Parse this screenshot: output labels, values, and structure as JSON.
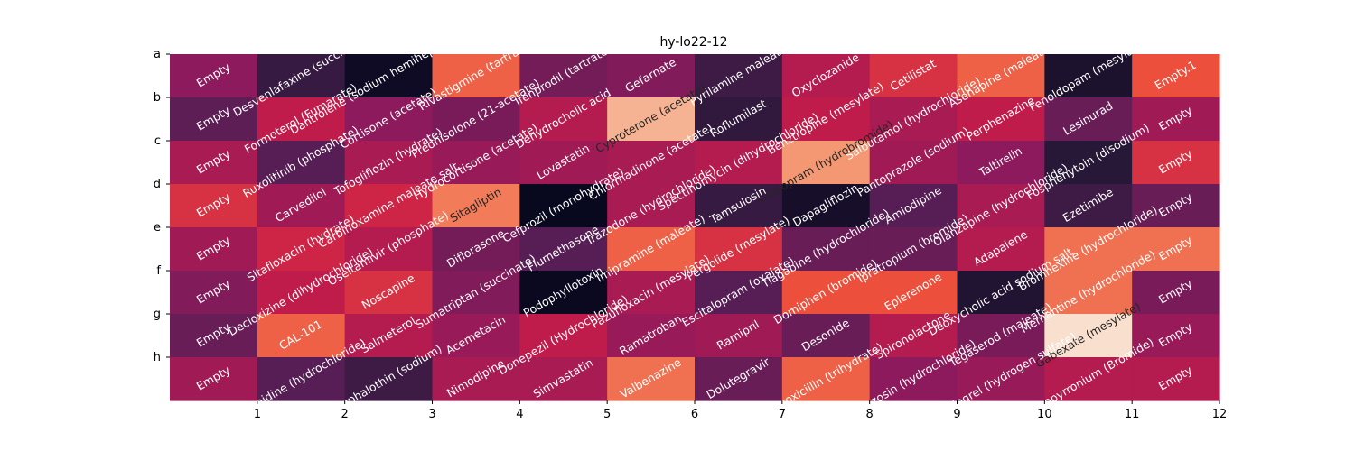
{
  "chart_data": {
    "type": "heatmap",
    "title": "hy-lo22-12",
    "xlabel": "",
    "ylabel": "",
    "x_ticks": [
      "1",
      "2",
      "3",
      "4",
      "5",
      "6",
      "7",
      "8",
      "9",
      "10",
      "11",
      "12"
    ],
    "y_ticks": [
      "a",
      "b",
      "c",
      "d",
      "e",
      "f",
      "g",
      "h"
    ],
    "colormap": "rocket",
    "colorbar": false,
    "rows": [
      [
        "Empty",
        "Desvenlafaxine (succinate)",
        "Dantrolene (sodium hemiheptahydrate)",
        "Rivastigmine (tartrate)",
        "Ifenprodil (tartrate)",
        "Gefarnate",
        "Pyrilamine maleate",
        "Oxyclozanide",
        "Cetilistat",
        "Asenapine (maleate)",
        "Fenoldopam (mesylate)",
        "Empty.1"
      ],
      [
        "Empty",
        "Formoterol (Fumarate)",
        "Cortisone (acetate)",
        "Prednisolone (21-acetate)",
        "Dehydrocholic acid",
        "Cyproterone (acetate)",
        "Roflumilast",
        "Benztropine (mesylate)",
        "Salbutamol (hydrochloride)",
        "Perphenazine",
        "Lesinurad",
        "Empty"
      ],
      [
        "Empty",
        "Ruxolitinib (phosphate)",
        "Tofogliflozin (hydrate)",
        "Hydrocortisone (acetate)",
        "Lovastatin",
        "Chlormadinone (acetate)",
        "Spectinomycin (dihydrochloride)",
        "Citalopram (hydrobromide)",
        "Pantoprazole (sodium)",
        "Taltirelin",
        "Fosphenytoin (disodium)",
        "Empty"
      ],
      [
        "Empty",
        "Carvedilol",
        "Carbinoxamine maleate salt",
        "Sitagliptin",
        "Cefprozil (monohydrate)",
        "Trazodone (hydrochloride)",
        "Tamsulosin",
        "Dapagliflozin",
        "Amlodipine",
        "Olanzapine (hydrochloride)",
        "Ezetimibe",
        "Empty"
      ],
      [
        "Empty",
        "Sitafloxacin (hydrate)",
        "Oseltamivir (phosphate)",
        "Diflorasone",
        "Flumethasone",
        "Imipramine (maleate)",
        "Pergolide (mesylate)",
        "Tiagabine (hydrochloride)",
        "Ipratropium (bromide)",
        "Adapalene",
        "Bromhexine (hydrochloride)",
        "Empty"
      ],
      [
        "Empty",
        "Decloxizine (dihydrochloride)",
        "Noscapine",
        "Sumatriptan (succinate)",
        "Podophyllotoxin",
        "Pazufloxacin (mesylate)",
        "Escitalopram (oxalate)",
        "Domiphen (bromide)",
        "Eplerenone",
        "Deoxycholic acid sodium salt",
        "Memantine (hydrochloride)",
        "Empty"
      ],
      [
        "Empty",
        "CAL-101",
        "Salmeterol",
        "Acemetacin",
        "Donepezil (Hydrochloride)",
        "Ramatroban",
        "Ramipril",
        "Desonide",
        "Spironolactone",
        "Tegaserod (maleate)",
        "Gabexate (mesylate)",
        "Empty"
      ],
      [
        "Empty",
        "Tizanidine (hydrochloride)",
        "Cephalothin (sodium)",
        "Nimodipine",
        "Simvastatin",
        "Valbenazine",
        "Dolutegravir",
        "Amoxicillin (trihydrate)",
        "Terazosin (hydrochloride)",
        "Clopidogrel (hydrogen sulfate)",
        "Glycopyrronium (Bromide)",
        "Empty"
      ]
    ],
    "values": [
      [
        0.45,
        0.2,
        0.05,
        0.75,
        0.38,
        0.42,
        0.22,
        0.55,
        0.65,
        0.75,
        0.1,
        0.72
      ],
      [
        0.32,
        0.58,
        0.45,
        0.4,
        0.55,
        0.9,
        0.18,
        0.58,
        0.52,
        0.58,
        0.35,
        0.5
      ],
      [
        0.52,
        0.3,
        0.52,
        0.48,
        0.5,
        0.52,
        0.55,
        0.85,
        0.5,
        0.45,
        0.15,
        0.65
      ],
      [
        0.65,
        0.5,
        0.62,
        0.8,
        0.02,
        0.52,
        0.2,
        0.08,
        0.3,
        0.52,
        0.22,
        0.35
      ],
      [
        0.5,
        0.62,
        0.55,
        0.38,
        0.3,
        0.75,
        0.65,
        0.35,
        0.35,
        0.55,
        0.78,
        0.78
      ],
      [
        0.42,
        0.58,
        0.65,
        0.42,
        0.03,
        0.52,
        0.3,
        0.72,
        0.72,
        0.12,
        0.78,
        0.4
      ],
      [
        0.35,
        0.75,
        0.55,
        0.48,
        0.58,
        0.48,
        0.5,
        0.35,
        0.55,
        0.4,
        0.98,
        0.48
      ],
      [
        0.5,
        0.3,
        0.22,
        0.52,
        0.52,
        0.78,
        0.35,
        0.75,
        0.45,
        0.48,
        0.55,
        0.55
      ]
    ]
  }
}
